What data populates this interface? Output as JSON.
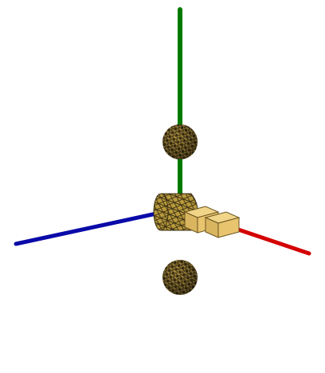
{
  "scene": {
    "axes": [
      {
        "axis": "x",
        "color": "#d40000"
      },
      {
        "axis": "y",
        "color": "#007a00"
      },
      {
        "axis": "z",
        "color": "#0a0aa8"
      }
    ],
    "objects": [
      {
        "name": "sphere-top",
        "shape": "sphere",
        "fill": "#3a2f14",
        "edge": "#d7b54a"
      },
      {
        "name": "sphere-bottom",
        "shape": "sphere",
        "fill": "#3a2f14",
        "edge": "#d7b54a"
      },
      {
        "name": "cylinder",
        "shape": "cylinder",
        "fill": "#b89a3c",
        "edge": "#3a2f14"
      },
      {
        "name": "box-near",
        "shape": "cube",
        "fill": "#e8c46e",
        "edge": "#6b5420"
      },
      {
        "name": "box-far",
        "shape": "cube",
        "fill": "#e8c46e",
        "edge": "#6b5420"
      }
    ]
  }
}
